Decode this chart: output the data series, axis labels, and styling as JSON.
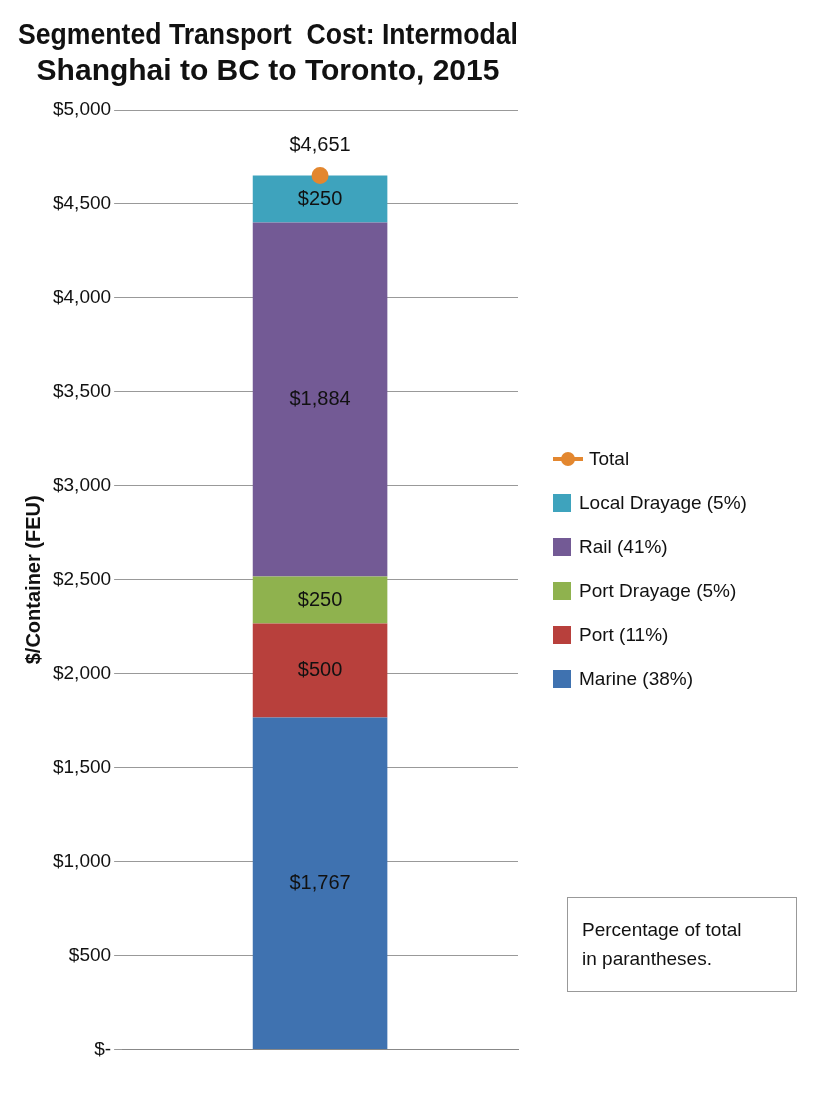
{
  "chart_data": {
    "type": "bar",
    "title": "Segmented Transport  Cost: Intermodal\nShanghai to BC to Toronto, 2015",
    "ylabel": "$/Container (FEU)",
    "categories": [
      null
    ],
    "stacked": true,
    "grid": "y",
    "legend": "right",
    "ylim": [
      0,
      5000
    ],
    "yticks": [
      {
        "value": 0,
        "label": "$-"
      },
      {
        "value": 500,
        "label": "$500"
      },
      {
        "value": 1000,
        "label": "$1,000"
      },
      {
        "value": 1500,
        "label": "$1,500"
      },
      {
        "value": 2000,
        "label": "$2,000"
      },
      {
        "value": 2500,
        "label": "$2,500"
      },
      {
        "value": 3000,
        "label": "$3,000"
      },
      {
        "value": 3500,
        "label": "$3,500"
      },
      {
        "value": 4000,
        "label": "$4,000"
      },
      {
        "value": 4500,
        "label": "$4,500"
      },
      {
        "value": 5000,
        "label": "$5,000"
      }
    ],
    "series": [
      {
        "name": "Marine (38%)",
        "color": "#3f72b0",
        "values": [
          1767
        ],
        "value_labels": [
          "$1,767"
        ]
      },
      {
        "name": "Port (11%)",
        "color": "#b8403c",
        "values": [
          500
        ],
        "value_labels": [
          "$500"
        ]
      },
      {
        "name": "Port Drayage (5%)",
        "color": "#8fb24e",
        "values": [
          250
        ],
        "value_labels": [
          "$250"
        ]
      },
      {
        "name": "Rail (41%)",
        "color": "#735a95",
        "values": [
          1884
        ],
        "value_labels": [
          "$1,884"
        ]
      },
      {
        "name": "Local Drayage (5%)",
        "color": "#3ea3bd",
        "values": [
          250
        ],
        "value_labels": [
          "$250"
        ]
      },
      {
        "name": "Total",
        "type": "line",
        "marker": "circle",
        "color": "#e3872f",
        "values": [
          4651
        ],
        "value_labels": [
          "$4,651"
        ]
      }
    ],
    "annotations": [
      "Percentage of total\nin parantheses."
    ]
  }
}
